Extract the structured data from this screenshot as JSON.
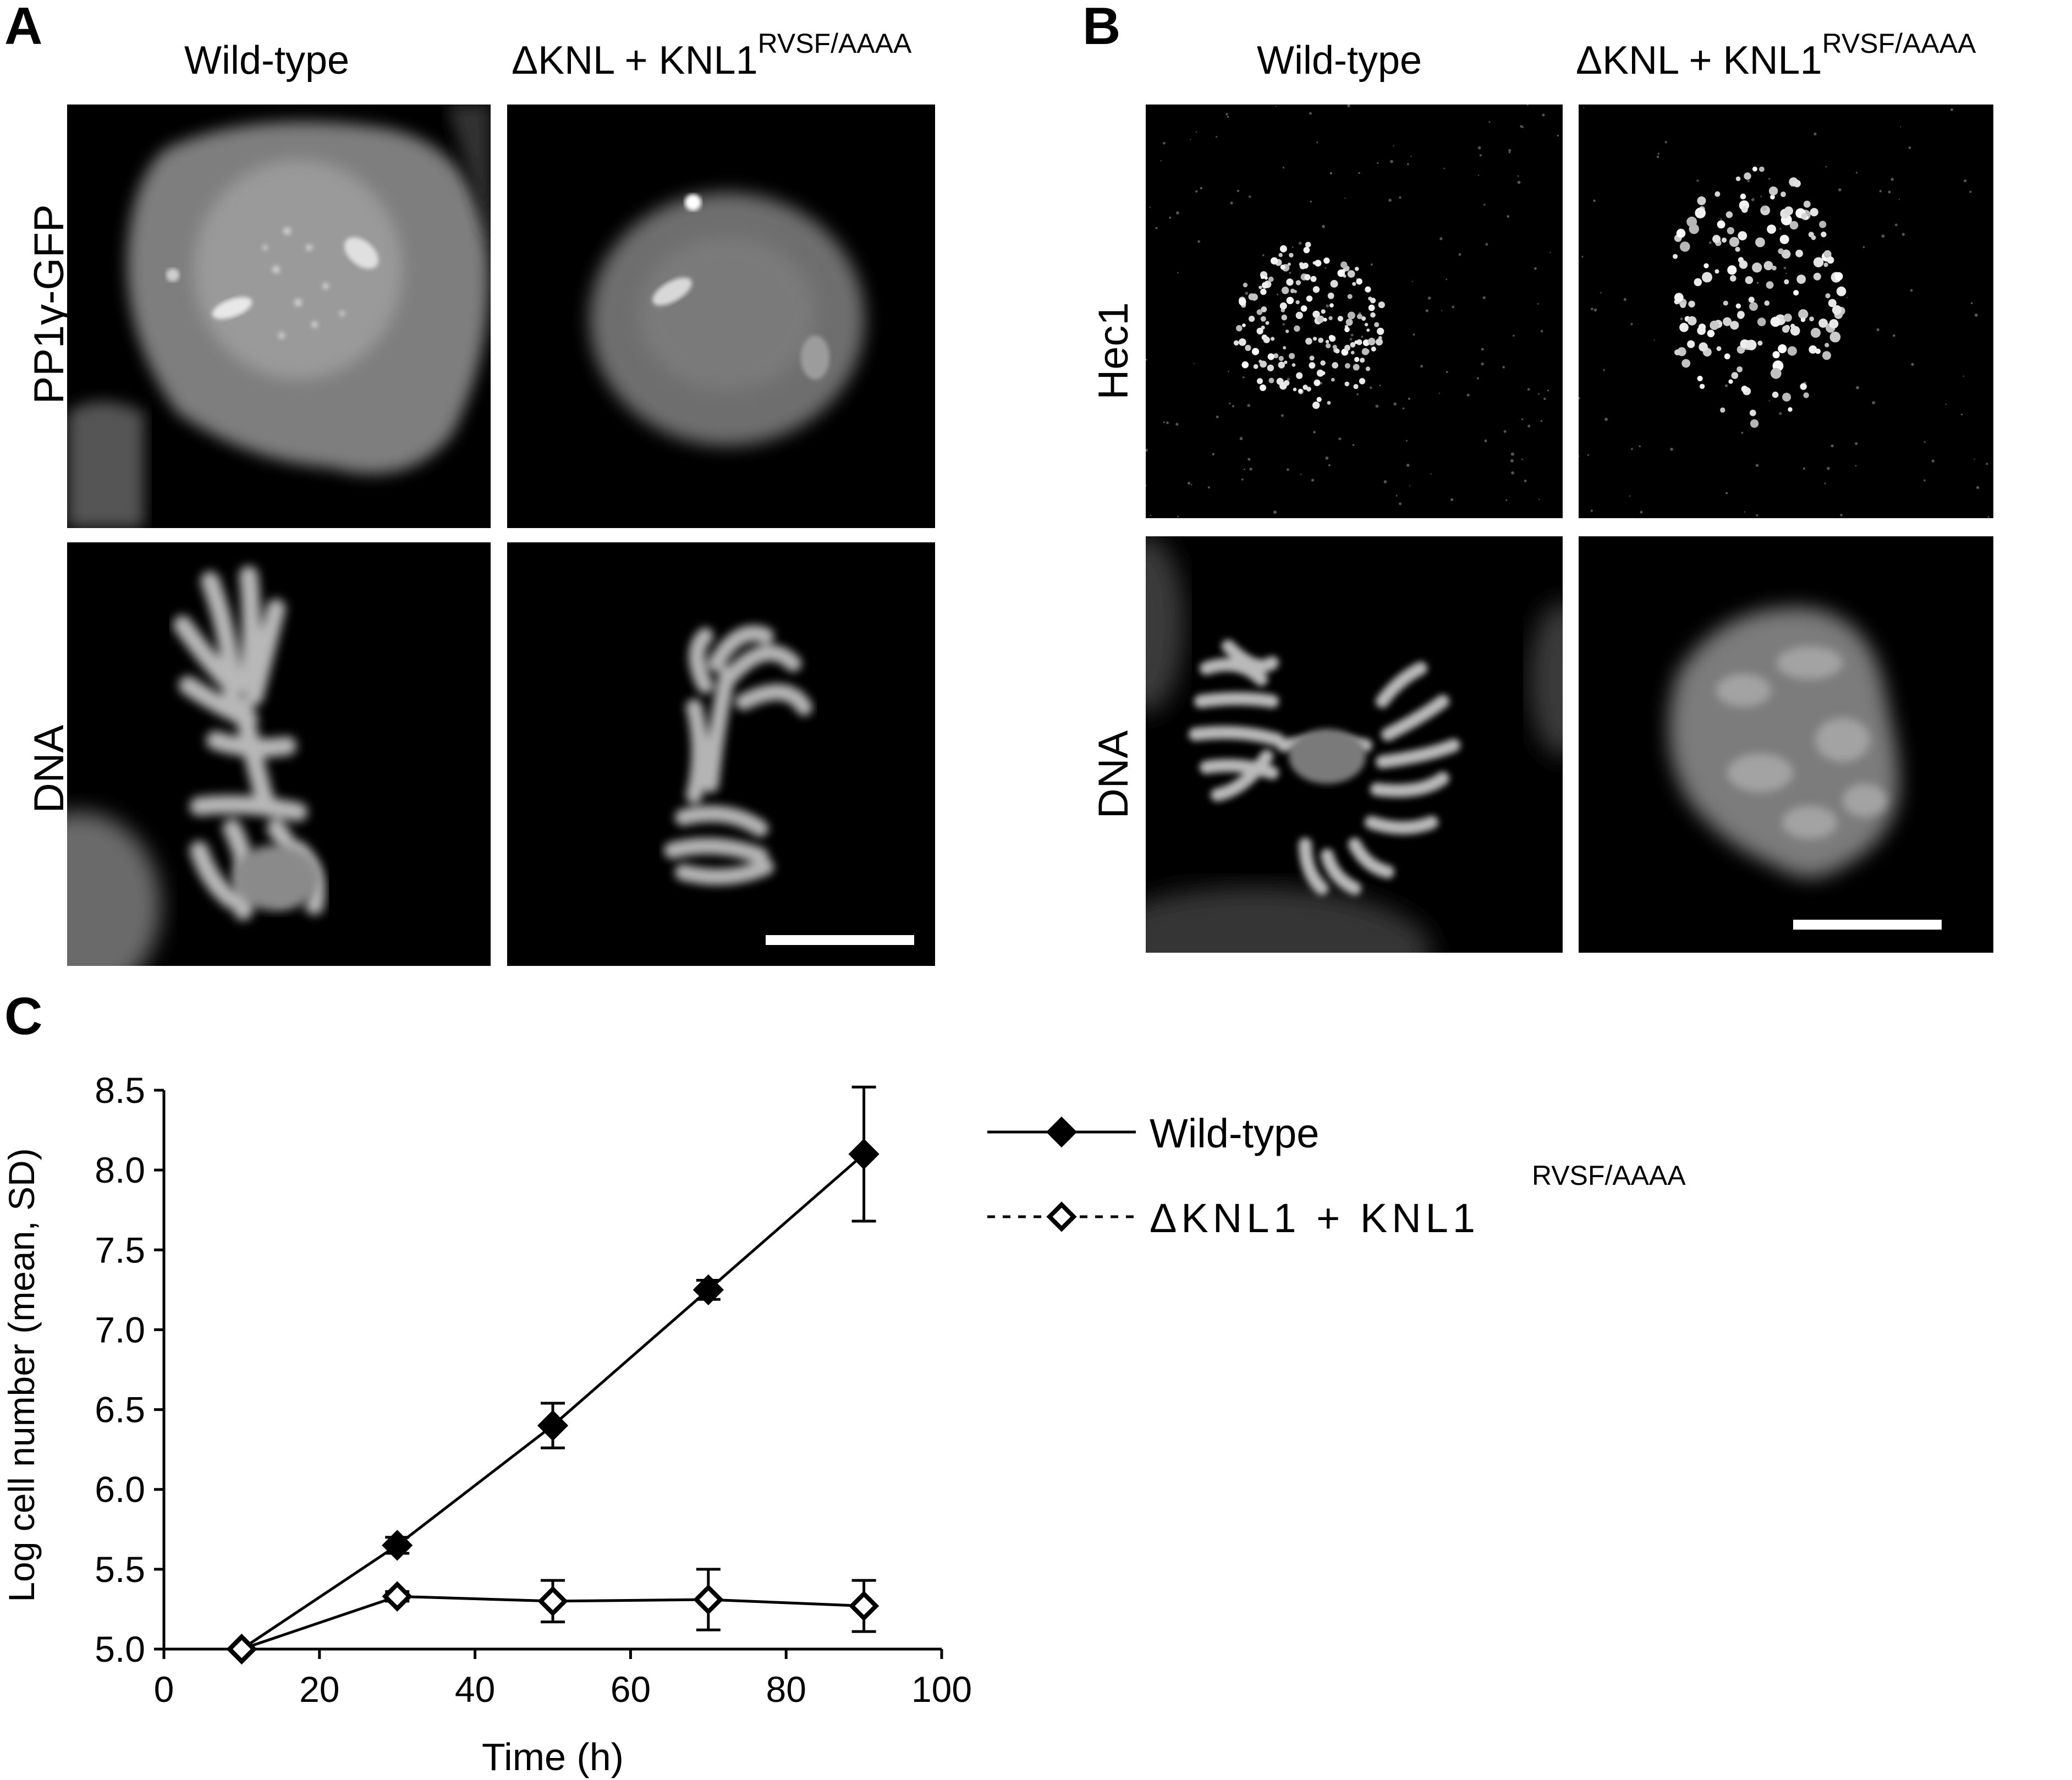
{
  "panel_a": {
    "letter": "A",
    "col_titles": [
      "Wild-type",
      "ΔKNL + KNL1"
    ],
    "col2_sup": "RVSF/AAAA",
    "row_labels": [
      "PP1γ-GFP",
      "DNA"
    ]
  },
  "panel_b": {
    "letter": "B",
    "col_titles": [
      "Wild-type",
      "ΔKNL + KNL1"
    ],
    "col2_sup": "RVSF/AAAA",
    "row_labels": [
      "Hec1",
      "DNA"
    ]
  },
  "panel_c": {
    "letter": "C"
  },
  "chart_data": {
    "type": "line",
    "xlabel": "Time (h)",
    "ylabel": "Log cell number (mean, SD)",
    "xlim": [
      0,
      100
    ],
    "ylim": [
      5.0,
      8.5
    ],
    "xticks": [
      0,
      20,
      40,
      60,
      80,
      100
    ],
    "yticks": [
      "5.0",
      "5.5",
      "6.0",
      "6.5",
      "7.0",
      "7.5",
      "8.0",
      "8.5"
    ],
    "grid": false,
    "legend_position": "top-right",
    "series": [
      {
        "name": "Wild-type",
        "name_sup": "",
        "marker": "filled-diamond",
        "line": "solid",
        "x": [
          10,
          30,
          50,
          70,
          90
        ],
        "y": [
          5.0,
          5.65,
          6.4,
          7.25,
          8.1
        ],
        "sd": [
          0.0,
          0.05,
          0.14,
          0.06,
          0.42
        ]
      },
      {
        "name": "ΔKNL1 + KNL1",
        "name_sup": "RVSF/AAAA",
        "marker": "open-diamond",
        "line": "solid",
        "legend_line": "dashed",
        "x": [
          10,
          30,
          50,
          70,
          90
        ],
        "y": [
          5.0,
          5.33,
          5.3,
          5.31,
          5.27
        ],
        "sd": [
          0.0,
          0.03,
          0.13,
          0.19,
          0.16
        ]
      }
    ]
  }
}
